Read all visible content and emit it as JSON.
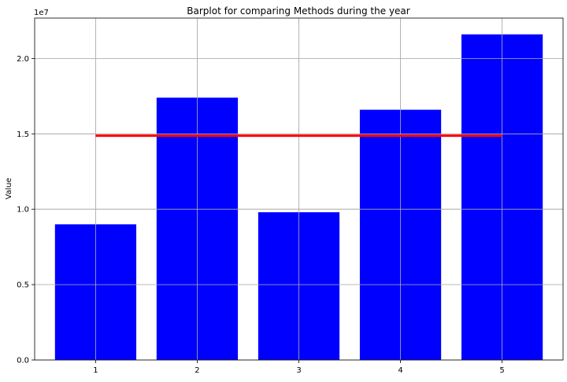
{
  "chart_data": {
    "type": "bar",
    "title": "Barplot for comparing Methods during the year",
    "xlabel": "",
    "ylabel": "Value",
    "offset_label": "1e7",
    "categories": [
      1,
      2,
      3,
      4,
      5
    ],
    "x_ticks": [
      "1",
      "2",
      "3",
      "4",
      "5"
    ],
    "y_ticks": [
      "0.0",
      "0.5",
      "1.0",
      "1.5",
      "2.0"
    ],
    "values": [
      9000000,
      17400000,
      9800000,
      16600000,
      21600000
    ],
    "xlim": [
      0.4,
      5.6
    ],
    "ylim": [
      0,
      22680000
    ],
    "reference_line": {
      "value": 14880000,
      "x_range": [
        1,
        5
      ]
    },
    "grid": true,
    "legend": false,
    "colors": {
      "bar": "#0000ff",
      "reference_line": "#ff0000",
      "grid": "#b0b0b0",
      "axis": "#000000"
    }
  }
}
